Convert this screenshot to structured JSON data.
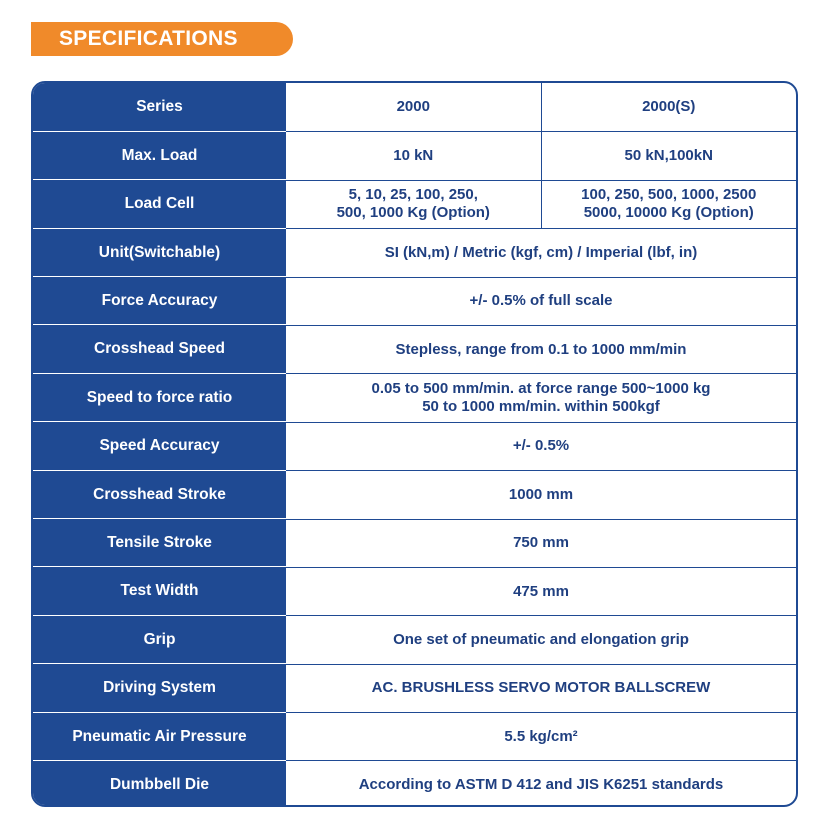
{
  "header": {
    "title": "SPECIFICATIONS"
  },
  "table": {
    "rows": [
      {
        "label": "Series",
        "c1": "2000",
        "c2": "2000(S)"
      },
      {
        "label": "Max. Load",
        "c1": "10 kN",
        "c2": "50 kN,100kN"
      },
      {
        "label": "Load Cell",
        "c1_l1": "5, 10, 25, 100, 250,",
        "c1_l2": "500, 1000 Kg (Option)",
        "c2_l1": "100, 250, 500, 1000, 2500",
        "c2_l2": "5000, 10000 Kg (Option)"
      },
      {
        "label": "Unit(Switchable)",
        "value": "SI (kN,m) / Metric (kgf, cm) / Imperial (lbf, in)"
      },
      {
        "label": "Force Accuracy",
        "value": "+/- 0.5% of full scale"
      },
      {
        "label": "Crosshead Speed",
        "value": "Stepless, range from 0.1 to 1000 mm/min"
      },
      {
        "label": "Speed to force ratio",
        "l1": "0.05 to 500 mm/min. at force range 500~1000 kg",
        "l2": "50 to 1000 mm/min. within 500kgf"
      },
      {
        "label": "Speed Accuracy",
        "value": "+/- 0.5%"
      },
      {
        "label": "Crosshead Stroke",
        "value": "1000 mm"
      },
      {
        "label": "Tensile Stroke",
        "value": "750 mm"
      },
      {
        "label": "Test Width",
        "value": "475 mm"
      },
      {
        "label": "Grip",
        "value": "One set of pneumatic and elongation grip"
      },
      {
        "label": "Driving System",
        "value": "AC.  BRUSHLESS SERVO MOTOR BALLSCREW"
      },
      {
        "label": "Pneumatic Air Pressure",
        "value": "5.5 kg/cm²"
      },
      {
        "label": "Dumbbell Die",
        "value": "According to ASTM D 412 and JIS K6251 standards"
      }
    ]
  }
}
